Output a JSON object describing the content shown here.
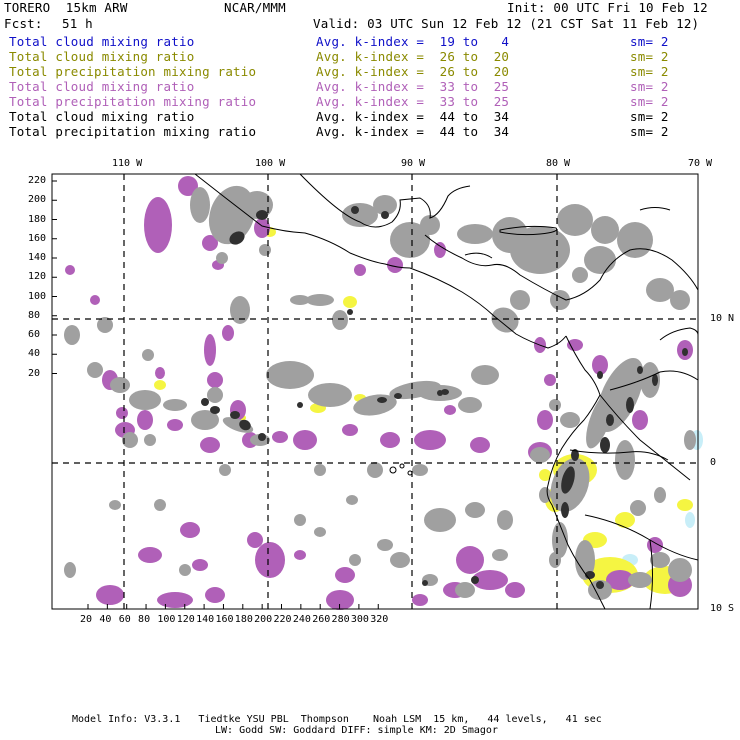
{
  "header": {
    "model": "TORERO  15km ARW",
    "org": "NCAR/MMM",
    "init": "Init: 00 UTC Fri 10 Feb 12",
    "fcst_label": "Fcst:",
    "fcst_hours": "51 h",
    "valid": "Valid: 03 UTC Sun 12 Feb 12 (21 CST Sat 11 Feb 12)"
  },
  "legend": [
    {
      "field": "Total cloud mixing ratio",
      "kindex": "Avg. k-index =  19 to   4",
      "sm": "sm= 2",
      "color": "#1010c8"
    },
    {
      "field": "Total cloud mixing ratio",
      "kindex": "Avg. k-index =  26 to  20",
      "sm": "sm= 2",
      "color": "#8a8a00"
    },
    {
      "field": "Total precipitation mixing ratio",
      "kindex": "Avg. k-index =  26 to  20",
      "sm": "sm= 2",
      "color": "#8a8a00"
    },
    {
      "field": "Total cloud mixing ratio",
      "kindex": "Avg. k-index =  33 to  25",
      "sm": "sm= 2",
      "color": "#b060b8"
    },
    {
      "field": "Total precipitation mixing ratio",
      "kindex": "Avg. k-index =  33 to  25",
      "sm": "sm= 2",
      "color": "#b060b8"
    },
    {
      "field": "Total cloud mixing ratio",
      "kindex": "Avg. k-index =  44 to  34",
      "sm": "sm= 2",
      "color": "#000000"
    },
    {
      "field": "Total precipitation mixing ratio",
      "kindex": "Avg. k-index =  44 to  34",
      "sm": "sm= 2",
      "color": "#000000"
    }
  ],
  "map": {
    "lon_labels": [
      "110 W",
      "100 W",
      "90 W",
      "80 W",
      "70 W"
    ],
    "lat_labels": [
      "10 N",
      "0",
      "10 S"
    ],
    "y_ticks": [
      "220",
      "200",
      "180",
      "160",
      "140",
      "120",
      "100",
      "80",
      "60",
      "40",
      "20"
    ],
    "x_ticks": [
      "20",
      "40",
      "60",
      "80",
      "100",
      "120",
      "140",
      "160",
      "180",
      "200",
      "220",
      "240",
      "260",
      "280",
      "300",
      "320"
    ],
    "colors": {
      "gray": "#a0a0a0",
      "dark": "#303030",
      "magenta": "#b060b8",
      "yellow": "#f5f542",
      "cyan": "#c8eef8"
    }
  },
  "footer": {
    "line1": "Model Info: V3.3.1   Tiedtke YSU PBL  Thompson    Noah LSM  15 km,   44 levels,   41 sec",
    "line2": "LW: Godd SW: Goddard DIFF: simple KM: 2D Smagor"
  }
}
